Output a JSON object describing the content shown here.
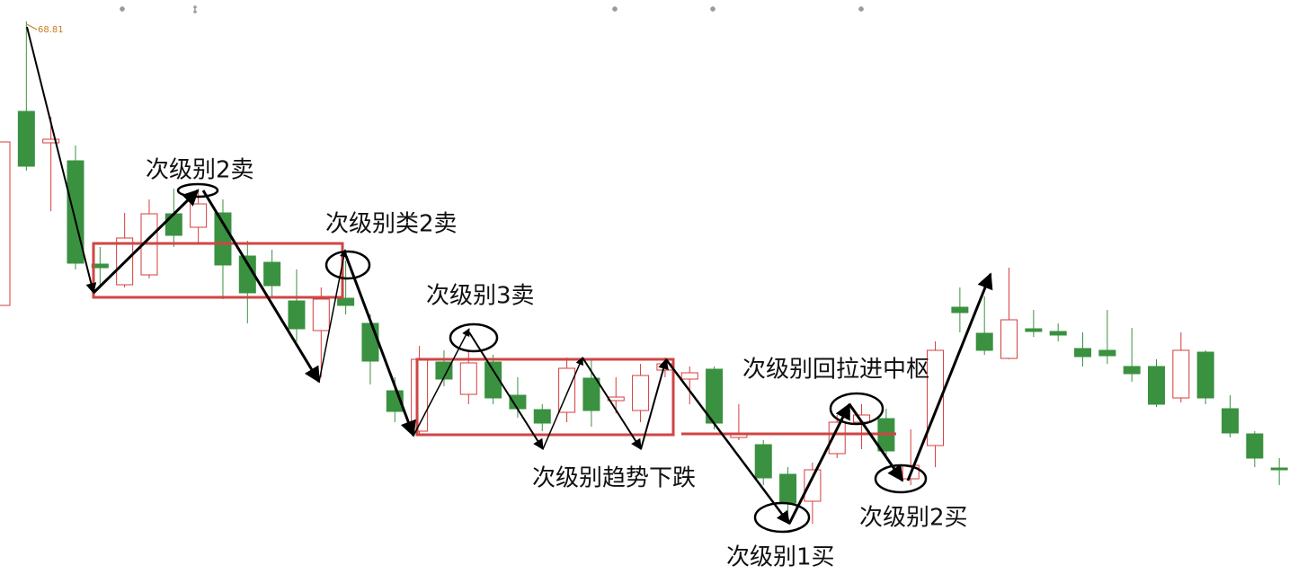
{
  "chart_data": {
    "type": "candlestick",
    "up_color": "#d43c3c",
    "down_color": "#3a9140",
    "ylim": [
      38.05,
      70
    ],
    "open": [
      53.0,
      63.8,
      62.05,
      61.05,
      55.3,
      54.15,
      54.7,
      58.1,
      57.35,
      58.15,
      55.75,
      55.4,
      53.25,
      51.6,
      53.4,
      52.0,
      48.25,
      46.0,
      49.85,
      48.05,
      49.85,
      48.0,
      47.2,
      47.05,
      48.95,
      47.7,
      47.15,
      49.4,
      48.9,
      49.45,
      45.65,
      45.25,
      43.6,
      42.1,
      44.75,
      46.5,
      46.7,
      43.35,
      45.2,
      52.9,
      51.45,
      50.05,
      51.7,
      51.55,
      50.6,
      50.5,
      49.6,
      49.6,
      47.85,
      50.4,
      47.25,
      45.85,
      43.95
    ],
    "high": [
      62.1,
      68.81,
      63.5,
      61.9,
      56.25,
      58.15,
      58.9,
      59.5,
      59.5,
      58.9,
      56.6,
      56.1,
      55.0,
      54.0,
      55.5,
      52.5,
      49.0,
      50.75,
      50.5,
      50.5,
      50.25,
      49.0,
      47.5,
      50.1,
      50.0,
      49.0,
      49.75,
      50.1,
      49.6,
      49.6,
      47.5,
      45.5,
      44.0,
      44.25,
      46.9,
      47.5,
      47.25,
      46.1,
      51.0,
      54.0,
      53.5,
      55.1,
      52.75,
      52.0,
      51.5,
      52.75,
      51.75,
      50.0,
      51.5,
      50.5,
      48.0,
      46.0,
      44.5
    ],
    "low": [
      53.0,
      60.5,
      58.25,
      55.0,
      54.1,
      54.0,
      54.5,
      56.25,
      56.5,
      53.35,
      52.0,
      53.5,
      51.0,
      49.0,
      52.5,
      48.6,
      46.5,
      45.75,
      48.5,
      47.5,
      47.5,
      46.75,
      46.0,
      46.5,
      46.25,
      47.0,
      46.5,
      49.0,
      47.5,
      46.1,
      45.5,
      43.0,
      41.1,
      40.85,
      44.5,
      45.0,
      44.5,
      43.0,
      44.0,
      51.5,
      50.25,
      50.0,
      51.25,
      51.0,
      49.6,
      49.75,
      48.75,
      47.35,
      47.6,
      47.5,
      45.65,
      44.0,
      43.0
    ],
    "close": [
      62.1,
      60.75,
      62.25,
      55.35,
      55.1,
      56.75,
      58.1,
      56.9,
      58.65,
      55.25,
      53.7,
      54.1,
      51.7,
      53.35,
      53.0,
      49.9,
      47.1,
      50.0,
      48.9,
      49.8,
      47.85,
      47.25,
      46.45,
      49.5,
      47.15,
      47.9,
      49.1,
      49.75,
      49.25,
      46.45,
      45.8,
      43.4,
      42.0,
      43.85,
      46.5,
      46.9,
      44.9,
      44.1,
      50.5,
      52.6,
      50.5,
      52.2,
      51.55,
      51.35,
      50.15,
      50.2,
      49.2,
      47.5,
      50.5,
      47.85,
      45.9,
      44.5,
      43.85
    ],
    "annotations": [
      "次级别2卖",
      "次级别类2卖",
      "次级别3卖",
      "次级别回拉进中枢",
      "次级别趋势下跌",
      "次级别1买",
      "次级别2买"
    ]
  }
}
